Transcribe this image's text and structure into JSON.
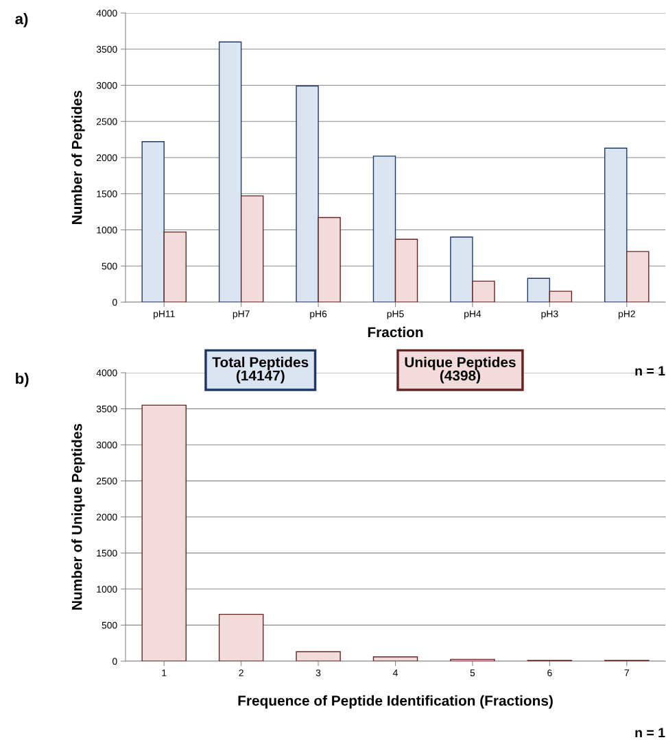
{
  "chart_data": [
    {
      "type": "bar",
      "xlabel": "Fraction",
      "ylabel": "Number of Peptides",
      "categories": [
        "pH11",
        "pH7",
        "pH6",
        "pH5",
        "pH4",
        "pH3",
        "pH2"
      ],
      "series": [
        {
          "name": "Total Peptides\n(14147)",
          "color": "#dbe5f1",
          "values": [
            2220,
            3600,
            2990,
            2020,
            900,
            330,
            2130
          ]
        },
        {
          "name": "Unique Peptides\n(4398)",
          "color": "#f2dcdb",
          "values": [
            970,
            1470,
            1170,
            870,
            290,
            150,
            700
          ]
        }
      ],
      "ylim": [
        0,
        4000
      ],
      "yticks": [
        0,
        500,
        1000,
        1500,
        2000,
        2500,
        3000,
        3500,
        4000
      ],
      "grid": "y",
      "legend": "bottom",
      "annotations": [
        "a)",
        "n = 1"
      ]
    },
    {
      "type": "bar",
      "xlabel": "Frequence of Peptide Identification (Fractions)",
      "ylabel": "Number of Unique Peptides",
      "categories": [
        "1",
        "2",
        "3",
        "4",
        "5",
        "6",
        "7"
      ],
      "series": [
        {
          "color": "#f2dcdb",
          "values": [
            3550,
            650,
            130,
            60,
            25,
            10,
            10
          ]
        }
      ],
      "ylim": [
        0,
        4000
      ],
      "yticks": [
        0,
        500,
        1000,
        1500,
        2000,
        2500,
        3000,
        3500,
        4000
      ],
      "grid": "y",
      "annotations": [
        "b)",
        "n = 1"
      ]
    }
  ]
}
